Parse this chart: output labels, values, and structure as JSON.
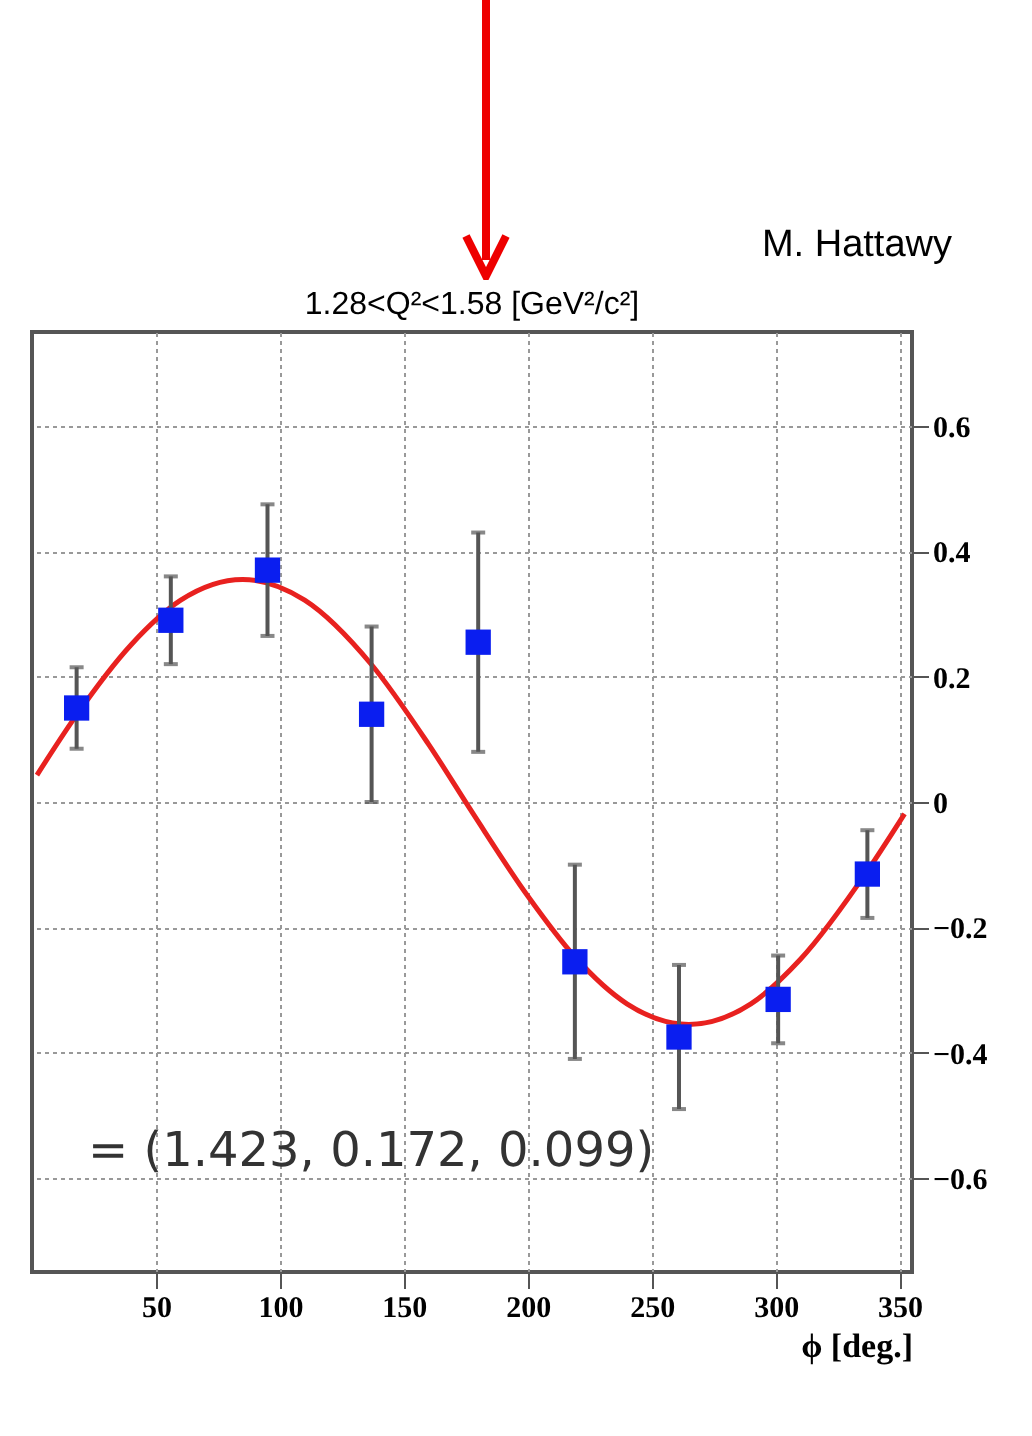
{
  "chart_data": {
    "type": "scatter",
    "title": "1.28<Q²<1.58 [GeV²/c²]",
    "xlabel": "ϕ [deg.]",
    "annotations": [
      "M. Hattawy",
      "= (1.423, 0.172, 0.099)"
    ],
    "xlim": [
      0,
      355
    ],
    "xticks": [
      50,
      100,
      150,
      200,
      250,
      300,
      350
    ],
    "ylim": [
      -0.75,
      0.75
    ],
    "yticks": [
      -0.6,
      -0.4,
      -0.2,
      {
        "value": 0,
        "label": "0"
      },
      0.2,
      0.4,
      0.6
    ],
    "grid": true,
    "series": [
      {
        "type": "line",
        "color": "#e8211f",
        "x": [
          2,
          18,
          40,
          60,
          85,
          110,
          137,
          160,
          178,
          200,
          219,
          240,
          265,
          290,
          310,
          337,
          352
        ],
        "values": [
          0.043,
          0.139,
          0.251,
          0.322,
          0.355,
          0.322,
          0.219,
          0.092,
          -0.019,
          -0.15,
          -0.247,
          -0.322,
          -0.355,
          -0.322,
          -0.251,
          -0.11,
          -0.019
        ]
      },
      {
        "type": "scatter",
        "color": "#0a1ef0",
        "marker": "square",
        "x": [
          18,
          56,
          95,
          137,
          180,
          219,
          261,
          301,
          337
        ],
        "values": [
          0.15,
          0.29,
          0.37,
          0.14,
          0.255,
          -0.255,
          -0.375,
          -0.315,
          -0.115
        ],
        "errors": [
          0.065,
          0.07,
          0.105,
          0.14,
          0.175,
          0.155,
          0.115,
          0.07,
          0.07
        ]
      }
    ]
  }
}
